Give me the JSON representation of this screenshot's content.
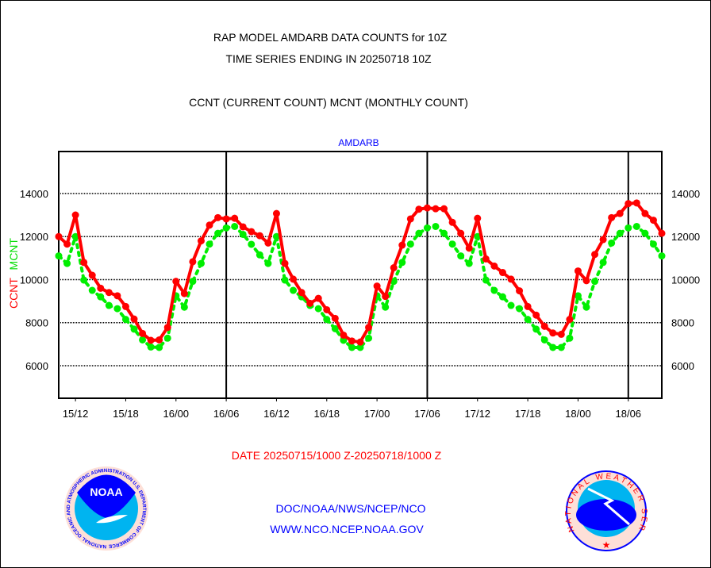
{
  "chart_data": {
    "type": "line",
    "title": [
      "RAP MODEL AMDARB DATA COUNTS for 10Z",
      "TIME SERIES ENDING IN 20250718 10Z"
    ],
    "subtitle": "CCNT (CURRENT COUNT) MCNT (MONTHLY COUNT)",
    "panel_label": "AMDARB",
    "xlabel": "DATE 20250715/1000 Z-20250718/1000 Z",
    "ylabel": {
      "ccnt": "CCNT",
      "mcnt": "MCNT"
    },
    "ylim": [
      4490,
      15950
    ],
    "yticks": [
      6000,
      8000,
      10000,
      12000,
      14000
    ],
    "ytick_labels": [
      "6000",
      "8000",
      "10000",
      "12000",
      "14000"
    ],
    "x_hours_range": [
      0,
      72
    ],
    "xticks_hours": [
      2,
      8,
      14,
      20,
      26,
      32,
      38,
      44,
      50,
      56,
      62,
      68
    ],
    "xtick_labels": [
      "15/12",
      "15/18",
      "16/00",
      "16/06",
      "16/12",
      "16/18",
      "17/00",
      "17/06",
      "17/12",
      "17/18",
      "18/00",
      "18/06"
    ],
    "major_vlines_hours": [
      20,
      44,
      68
    ],
    "grid": true,
    "series": [
      {
        "name": "CCNT",
        "color": "#ff0000",
        "style": "solid",
        "values": [
          12000,
          11650,
          13000,
          10800,
          10200,
          9600,
          9400,
          9250,
          8750,
          8170,
          7500,
          7180,
          7200,
          7780,
          9920,
          9350,
          10830,
          11800,
          12530,
          12880,
          12820,
          12850,
          12450,
          12230,
          12040,
          11700,
          13070,
          10750,
          10020,
          9400,
          8900,
          9130,
          8600,
          8200,
          7420,
          7150,
          7100,
          7780,
          9700,
          9220,
          10550,
          11600,
          12820,
          13270,
          13330,
          13290,
          13290,
          12660,
          12150,
          11460,
          12850,
          10960,
          10630,
          10330,
          10020,
          9480,
          8750,
          8350,
          7830,
          7520,
          7460,
          8150,
          10400,
          9950,
          11170,
          11860,
          12880,
          13070,
          13530,
          13560,
          13070,
          12760,
          12150
        ]
      },
      {
        "name": "MCNT",
        "color": "#00ee00",
        "style": "dotted",
        "values": [
          11100,
          10750,
          12000,
          9980,
          9500,
          9200,
          8800,
          8650,
          8150,
          7700,
          7200,
          6870,
          6850,
          7280,
          9250,
          8720,
          9920,
          10750,
          11650,
          12150,
          12400,
          12470,
          12100,
          11640,
          11150,
          10750,
          12000,
          9980,
          9500,
          9200,
          8800,
          8650,
          8150,
          7720,
          7180,
          6850,
          6850,
          7280,
          9250,
          8720,
          9920,
          10800,
          11650,
          12150,
          12400,
          12470,
          12150,
          11650,
          11100,
          10750,
          12000,
          9980,
          9500,
          9200,
          8800,
          8650,
          8150,
          7700,
          7200,
          6850,
          6850,
          7280,
          9250,
          8720,
          9920,
          10800,
          11700,
          12150,
          12400,
          12470,
          12150,
          11650,
          11100
        ]
      }
    ]
  },
  "footer": {
    "line1": "DOC/NOAA/NWS/NCEP/NCO",
    "line2": "WWW.NCO.NCEP.NOAA.GOV",
    "noaa_logo_text": "NOAA",
    "noaa_ring_text": "NATIONAL OCEANIC AND ATMOSPHERIC ADMINISTRATION U.S. DEPARTMENT OF COMMERCE",
    "nws_ring_text": "NATIONAL WEATHER SERVICE"
  },
  "colors": {
    "ccnt": "#ff0000",
    "mcnt": "#00ee00",
    "blue": "#0000ff"
  }
}
